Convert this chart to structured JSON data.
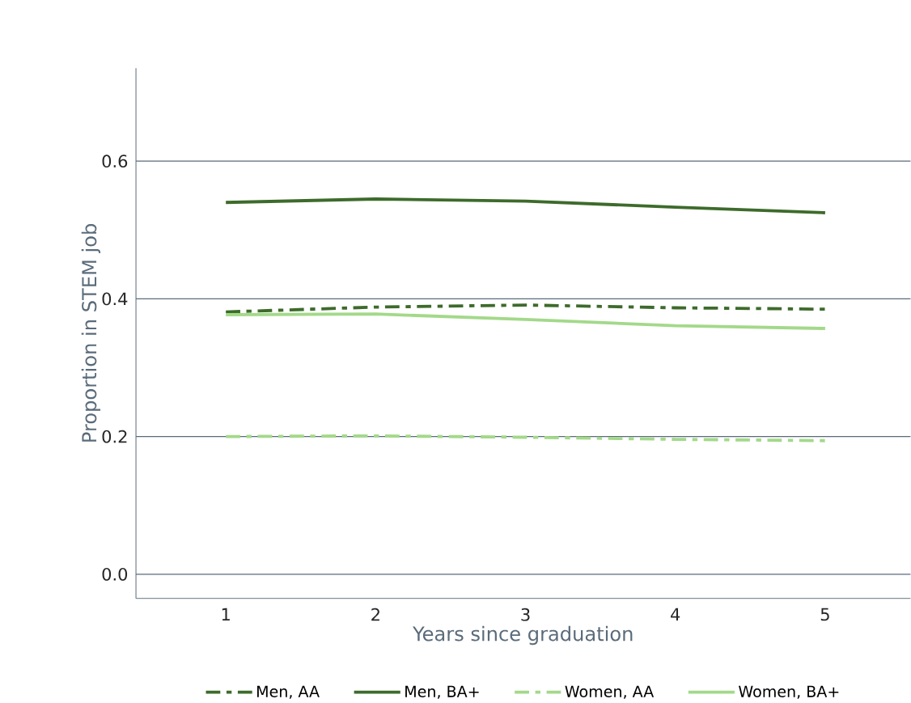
{
  "chart_data": {
    "type": "line",
    "xlabel": "Years since graduation",
    "ylabel": "Proportion in STEM job",
    "x": [
      1,
      2,
      3,
      4,
      5
    ],
    "series": [
      {
        "name": "Men, AA",
        "color": "#3d6b2b",
        "line_style": "dashed",
        "values": [
          0.381,
          0.388,
          0.391,
          0.387,
          0.385
        ]
      },
      {
        "name": "Men, BA+",
        "color": "#3d6b2b",
        "line_style": "solid",
        "values": [
          0.54,
          0.545,
          0.542,
          0.533,
          0.525
        ]
      },
      {
        "name": "Women, AA",
        "color": "#a3d98a",
        "line_style": "dashed",
        "values": [
          0.2,
          0.201,
          0.199,
          0.196,
          0.194
        ]
      },
      {
        "name": "Women, BA+",
        "color": "#a3d98a",
        "line_style": "solid",
        "values": [
          0.377,
          0.378,
          0.37,
          0.361,
          0.357
        ]
      }
    ],
    "xlim": [
      0.4,
      5.57
    ],
    "ylim": [
      -0.035,
      0.735
    ],
    "xticks": [
      1,
      2,
      3,
      4,
      5
    ],
    "yticks": [
      {
        "value": 0,
        "label": "0.0"
      },
      0.2,
      0.4,
      0.6
    ],
    "grid": "y",
    "legend": "bottom",
    "marker": "none"
  }
}
